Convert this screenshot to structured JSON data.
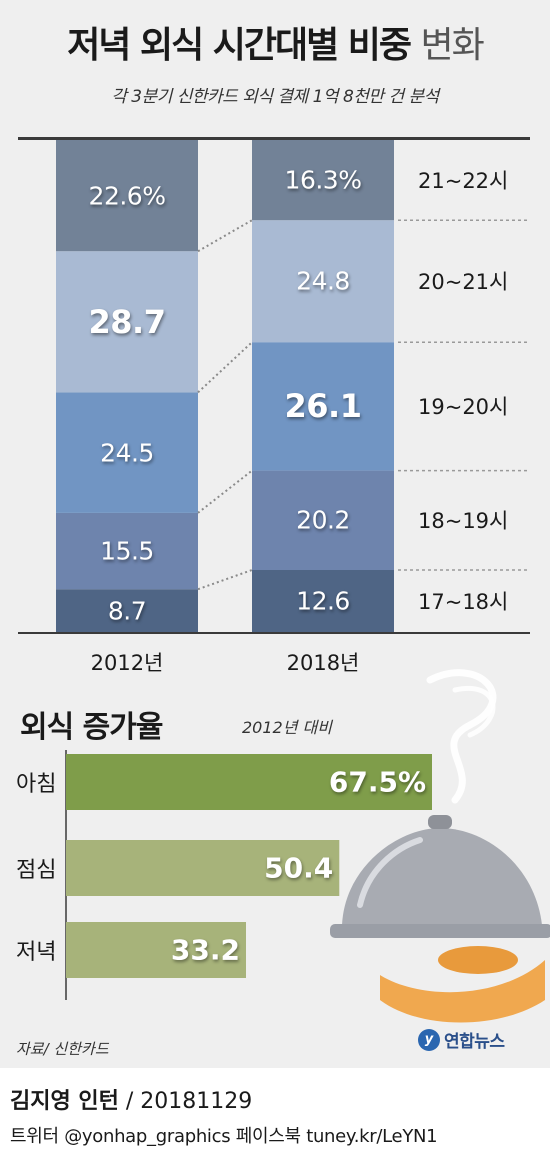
{
  "header": {
    "title_bold": "저녁 외식 시간대별 비중",
    "title_light": "변화",
    "subtitle": "각 3분기 신한카드 외식 결제 1억 8천만 건 분석"
  },
  "chart_data": [
    {
      "type": "bar",
      "stacked": true,
      "categories": [
        "2012년",
        "2018년"
      ],
      "series": [
        {
          "name": "17~18시",
          "values": [
            8.7,
            12.6
          ],
          "labels": [
            "8.7",
            "12.6"
          ],
          "color": "#4f6585"
        },
        {
          "name": "18~19시",
          "values": [
            15.5,
            20.2
          ],
          "labels": [
            "15.5",
            "20.2"
          ],
          "color": "#6e84ad"
        },
        {
          "name": "19~20시",
          "values": [
            24.5,
            26.1
          ],
          "labels": [
            "24.5",
            "26.1"
          ],
          "color": "#7195c3"
        },
        {
          "name": "20~21시",
          "values": [
            28.7,
            24.8
          ],
          "labels": [
            "28.7",
            "24.8"
          ],
          "color": "#a9bad3"
        },
        {
          "name": "21~22시",
          "values": [
            22.6,
            16.3
          ],
          "labels": [
            "22.6%",
            "16.3%"
          ],
          "color": "#728297"
        }
      ],
      "ylim": [
        0,
        100
      ],
      "emphasized": [
        "28.7",
        "26.1"
      ]
    },
    {
      "type": "bar",
      "orientation": "horizontal",
      "title": "외식 증가율",
      "note": "2012년 대비",
      "categories": [
        "아침",
        "점심",
        "저녁"
      ],
      "values": [
        67.5,
        50.4,
        33.2
      ],
      "labels": [
        "67.5%",
        "50.4",
        "33.2"
      ],
      "colors": [
        "#7f9d4a",
        "#a7b37a",
        "#a7b37a"
      ],
      "xlim": [
        0,
        67.5
      ]
    }
  ],
  "footer": {
    "source": "자료/ 신한카드",
    "logo": "연합뉴스",
    "credit_name": "김지영 인턴",
    "credit_date": " / 20181129",
    "social": "트위터 @yonhap_graphics  페이스북 tuney.kr/LeYN1"
  }
}
